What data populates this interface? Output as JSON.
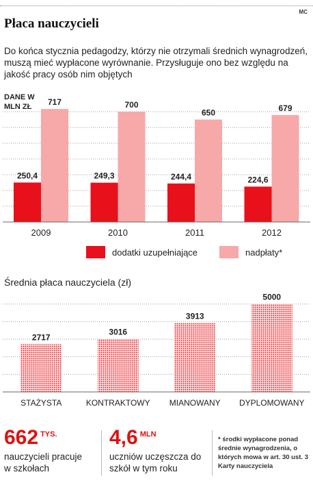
{
  "header": {
    "credit": "MC",
    "title": "Płaca nauczycieli",
    "description": "Do końca stycznia pedagodzy, którzy nie otrzymali średnich wynagrodzeń, muszą mieć wypłacone wyrównanie. Przysługuje ono bez względu na jakość pracy osób nim objętych"
  },
  "chart_data": [
    {
      "type": "bar",
      "unit_label": "DANE W MLN ZŁ",
      "categories": [
        "2009",
        "2010",
        "2011",
        "2012"
      ],
      "series": [
        {
          "name": "dodatki uzupełniające",
          "values": [
            250.4,
            249.3,
            244.4,
            224.6
          ],
          "labels": [
            "250,4",
            "249,3",
            "244,4",
            "224,6"
          ],
          "color": "#e8101a"
        },
        {
          "name": "nadpłaty*",
          "values": [
            717,
            700,
            650,
            679
          ],
          "labels": [
            "717",
            "700",
            "650",
            "679"
          ],
          "color": "#f7a8a8"
        }
      ],
      "ylim": [
        0,
        800
      ],
      "grid": true,
      "legend": "bottom"
    },
    {
      "type": "bar",
      "title": "Średnia płaca nauczyciela (zł)",
      "categories": [
        "STAŻYSTA",
        "KONTRAKTOWY",
        "MIANOWANY",
        "DYPLOMOWANY"
      ],
      "values": [
        2717,
        3016,
        3913,
        5000
      ],
      "labels": [
        "2717",
        "3016",
        "3913",
        "5000"
      ],
      "ylim": [
        0,
        5300
      ],
      "color": "#e8101a",
      "pattern": "dotted",
      "grid": true
    }
  ],
  "stats": [
    {
      "value": "662",
      "unit": "TYS.",
      "text": "nauczycieli pracuje w szkołach"
    },
    {
      "value": "4,6",
      "unit": "MLN",
      "text": "uczniów uczęszcza do szkół w tym roku"
    }
  ],
  "footnote": "* środki wypłacone ponad średnie wynagrodzenia, o których mowa w art. 30 ust. 3 Karty nauczyciela"
}
